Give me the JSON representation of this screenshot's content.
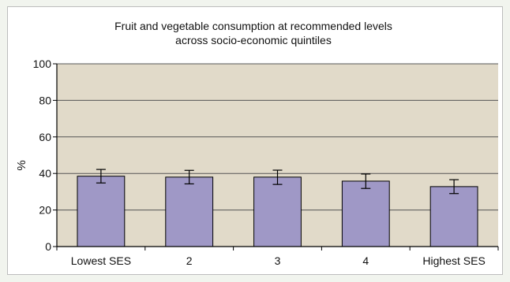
{
  "chart_data": {
    "type": "bar",
    "title_lines": [
      "Fruit and vegetable consumption at recommended levels",
      "across socio-economic quintiles"
    ],
    "xlabel": "",
    "ylabel": "%",
    "ylim": [
      0,
      100
    ],
    "yticks": [
      0,
      20,
      40,
      60,
      80,
      100
    ],
    "categories": [
      "Lowest SES",
      "2",
      "3",
      "4",
      "Highest SES"
    ],
    "values": [
      38.5,
      38,
      38,
      35.8,
      32.8
    ],
    "error_low": [
      34.8,
      34.3,
      34.0,
      31.8,
      29.0
    ],
    "error_high": [
      42.2,
      41.7,
      41.8,
      39.7,
      36.6
    ],
    "grid": true,
    "colors": {
      "plot_bg": "#e1dac9",
      "bar_fill": "#9f98c6",
      "bar_stroke": "#000000",
      "gridline": "#555555",
      "page_bg": "#f1f4ee"
    }
  }
}
